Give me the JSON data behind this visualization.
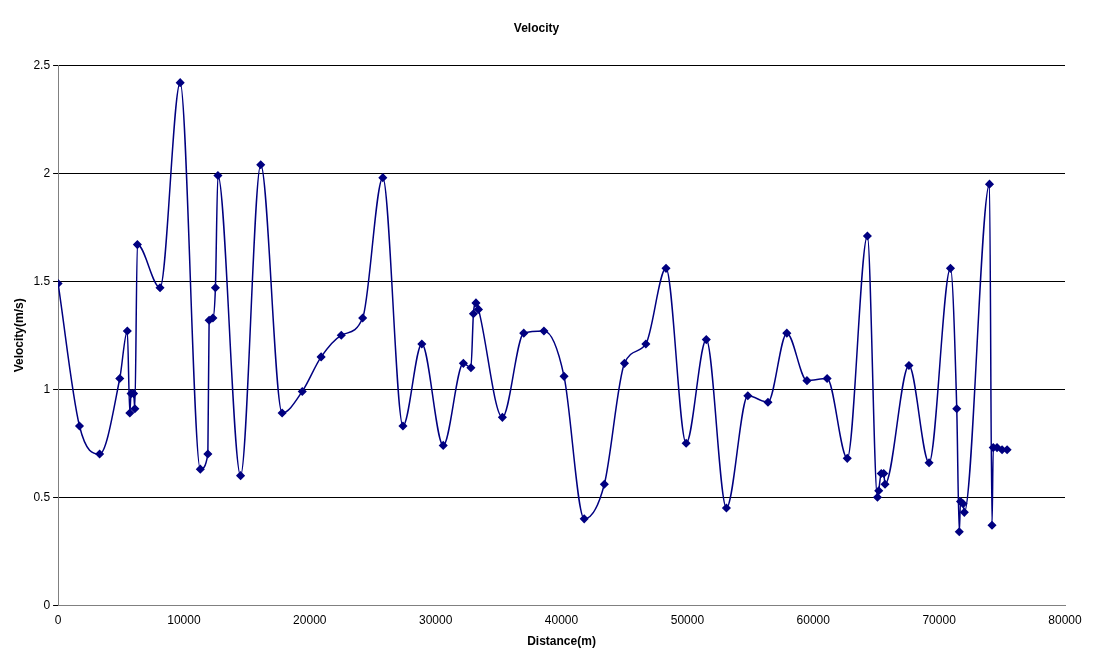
{
  "chart_data": {
    "type": "line",
    "title": "Velocity",
    "xlabel": "Distance(m)",
    "ylabel": "Velocity(m/s)",
    "xlim": [
      0,
      80000
    ],
    "xticks": [
      0,
      10000,
      20000,
      30000,
      40000,
      50000,
      60000,
      70000,
      80000
    ],
    "ylim": [
      0,
      2.5
    ],
    "yticks": [
      0,
      0.5,
      1,
      1.5,
      2,
      2.5
    ],
    "grid": "y",
    "legend": false,
    "marker": "diamond",
    "line_style": "solid",
    "series": [
      {
        "color": "#000080",
        "x": [
          0,
          1700,
          3300,
          4900,
          5500,
          5700,
          5800,
          6000,
          6100,
          6300,
          8100,
          9700,
          11300,
          11900,
          12000,
          12300,
          12500,
          12700,
          14500,
          16100,
          17800,
          19400,
          20900,
          22500,
          24200,
          25800,
          27400,
          28900,
          30600,
          32200,
          32800,
          33000,
          33200,
          33400,
          35300,
          37000,
          38600,
          40200,
          41800,
          43400,
          45000,
          46700,
          48300,
          49900,
          51500,
          53100,
          54800,
          56400,
          57900,
          59500,
          61100,
          62700,
          64300,
          65100,
          65200,
          65400,
          65600,
          65700,
          67600,
          69200,
          70900,
          71400,
          71600,
          71700,
          71900,
          72000,
          74000,
          74200,
          74300,
          74600,
          75000,
          75400
        ],
        "values": [
          1.49,
          0.83,
          0.7,
          1.05,
          1.27,
          0.89,
          0.98,
          0.98,
          0.91,
          1.67,
          1.47,
          2.42,
          0.63,
          0.7,
          1.32,
          1.33,
          1.47,
          1.99,
          0.6,
          2.04,
          0.89,
          0.99,
          1.15,
          1.25,
          1.33,
          1.98,
          0.83,
          1.21,
          0.74,
          1.12,
          1.1,
          1.35,
          1.4,
          1.37,
          0.87,
          1.26,
          1.27,
          1.06,
          0.4,
          0.56,
          1.12,
          1.21,
          1.56,
          0.75,
          1.23,
          0.45,
          0.97,
          0.94,
          1.26,
          1.04,
          1.05,
          0.68,
          1.71,
          0.5,
          0.53,
          0.61,
          0.61,
          0.56,
          1.11,
          0.66,
          1.56,
          0.91,
          0.34,
          0.48,
          0.47,
          0.43,
          1.95,
          0.37,
          0.73,
          0.73,
          0.72,
          0.72
        ]
      }
    ]
  }
}
